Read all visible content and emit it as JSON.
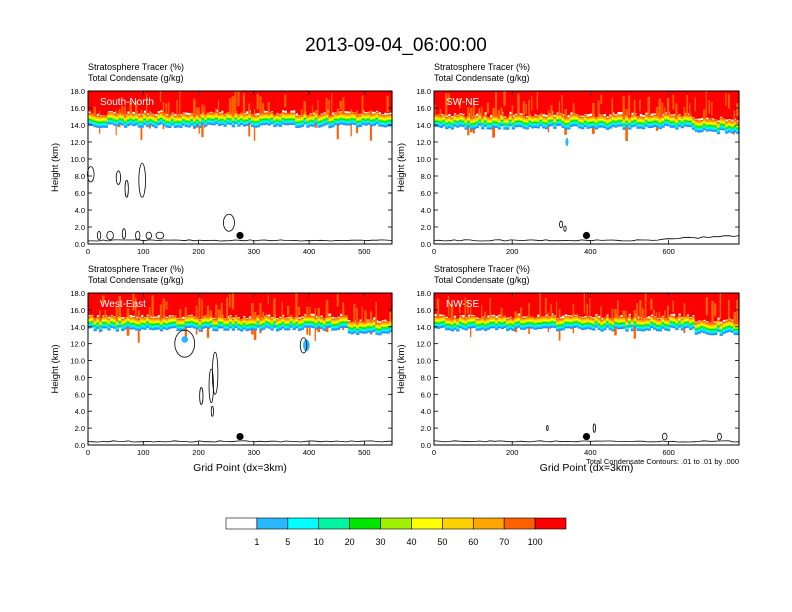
{
  "title": "2013-09-04_06:00:00",
  "colors": {
    "bins": [
      "#ffffff",
      "#1e90ff",
      "#28b8ff",
      "#00ffff",
      "#00f5a0",
      "#00e600",
      "#a0f000",
      "#ffff00",
      "#ffd000",
      "#ffa500",
      "#ff6000",
      "#ff0000"
    ],
    "axis": "#000000",
    "contour": "#000000"
  },
  "colorbar": {
    "labels": [
      "1",
      "5",
      "10",
      "20",
      "30",
      "40",
      "50",
      "60",
      "70",
      "100"
    ]
  },
  "chart_data": [
    {
      "type": "heatmap",
      "panel_label": "South-North",
      "title_line1": "Stratosphere Tracer   (%)",
      "title_line2": "Total Condensate   (g/kg)",
      "ylabel": "Height (km)",
      "xlabel": "",
      "xlim": [
        0,
        550
      ],
      "ylim": [
        0,
        18
      ],
      "xticks": [
        0,
        100,
        200,
        300,
        400,
        500
      ],
      "yticks": [
        "0.0",
        "2.0",
        "4.0",
        "6.0",
        "8.0",
        "10.0",
        "12.0",
        "14.0",
        "16.0",
        "18.0"
      ],
      "tracer_base_km": 14.2,
      "marker": {
        "x": 275,
        "y": 1.0
      }
    },
    {
      "type": "heatmap",
      "panel_label": "SW-NE",
      "title_line1": "Stratosphere Tracer   (%)",
      "title_line2": "Total Condensate   (g/kg)",
      "ylabel": "Height (km)",
      "xlabel": "",
      "xlim": [
        0,
        780
      ],
      "ylim": [
        0,
        18
      ],
      "xticks": [
        0,
        200,
        400,
        600
      ],
      "yticks": [
        "0.0",
        "2.0",
        "4.0",
        "6.0",
        "8.0",
        "10.0",
        "12.0",
        "14.0",
        "16.0",
        "18.0"
      ],
      "tracer_base_km": 14.0,
      "marker": {
        "x": 390,
        "y": 1.0
      }
    },
    {
      "type": "heatmap",
      "panel_label": "West-East",
      "title_line1": "Stratosphere Tracer   (%)",
      "title_line2": "Total Condensate   (g/kg)",
      "ylabel": "Height (km)",
      "xlabel": "Grid Point (dx=3km)",
      "xlim": [
        0,
        550
      ],
      "ylim": [
        0,
        18
      ],
      "xticks": [
        0,
        100,
        200,
        300,
        400,
        500
      ],
      "yticks": [
        "0.0",
        "2.0",
        "4.0",
        "6.0",
        "8.0",
        "10.0",
        "12.0",
        "14.0",
        "16.0",
        "18.0"
      ],
      "tracer_base_km": 14.0,
      "marker": {
        "x": 275,
        "y": 1.0
      }
    },
    {
      "type": "heatmap",
      "panel_label": "NW-SE",
      "title_line1": "Stratosphere Tracer   (%)",
      "title_line2": "Total Condensate   (g/kg)",
      "ylabel": "Height (km)",
      "xlabel": "Grid Point (dx=3km)",
      "xlim": [
        0,
        780
      ],
      "ylim": [
        0,
        18
      ],
      "xticks": [
        0,
        200,
        400,
        600
      ],
      "yticks": [
        "0.0",
        "2.0",
        "4.0",
        "6.0",
        "8.0",
        "10.0",
        "12.0",
        "14.0",
        "16.0",
        "18.0"
      ],
      "tracer_base_km": 14.0,
      "marker": {
        "x": 390,
        "y": 1.0
      },
      "annotation": "Total Condensate Contours: .01 to .01 by .000"
    }
  ]
}
